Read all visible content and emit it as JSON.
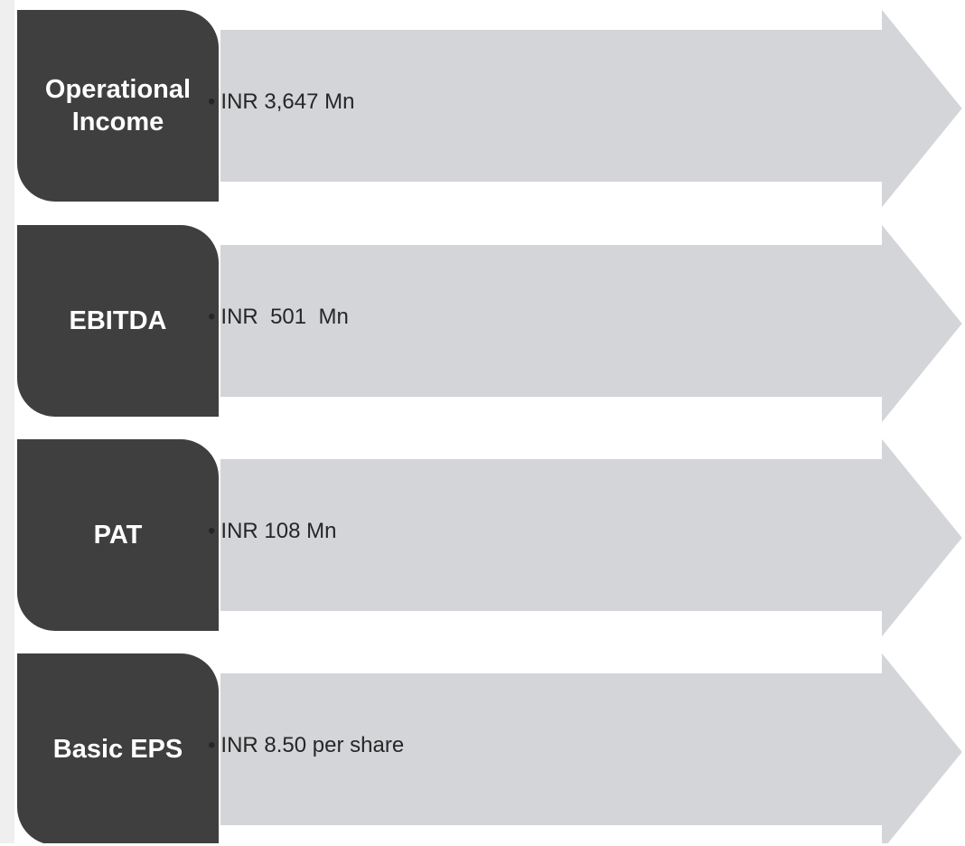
{
  "items": [
    {
      "label": "Operational Income",
      "text": "INR 3,647 Mn"
    },
    {
      "label": "EBITDA",
      "text": "INR  501  Mn"
    },
    {
      "label": "PAT",
      "text": "INR 108 Mn"
    },
    {
      "label": "Basic EPS",
      "text": "INR 8.50 per share"
    }
  ]
}
